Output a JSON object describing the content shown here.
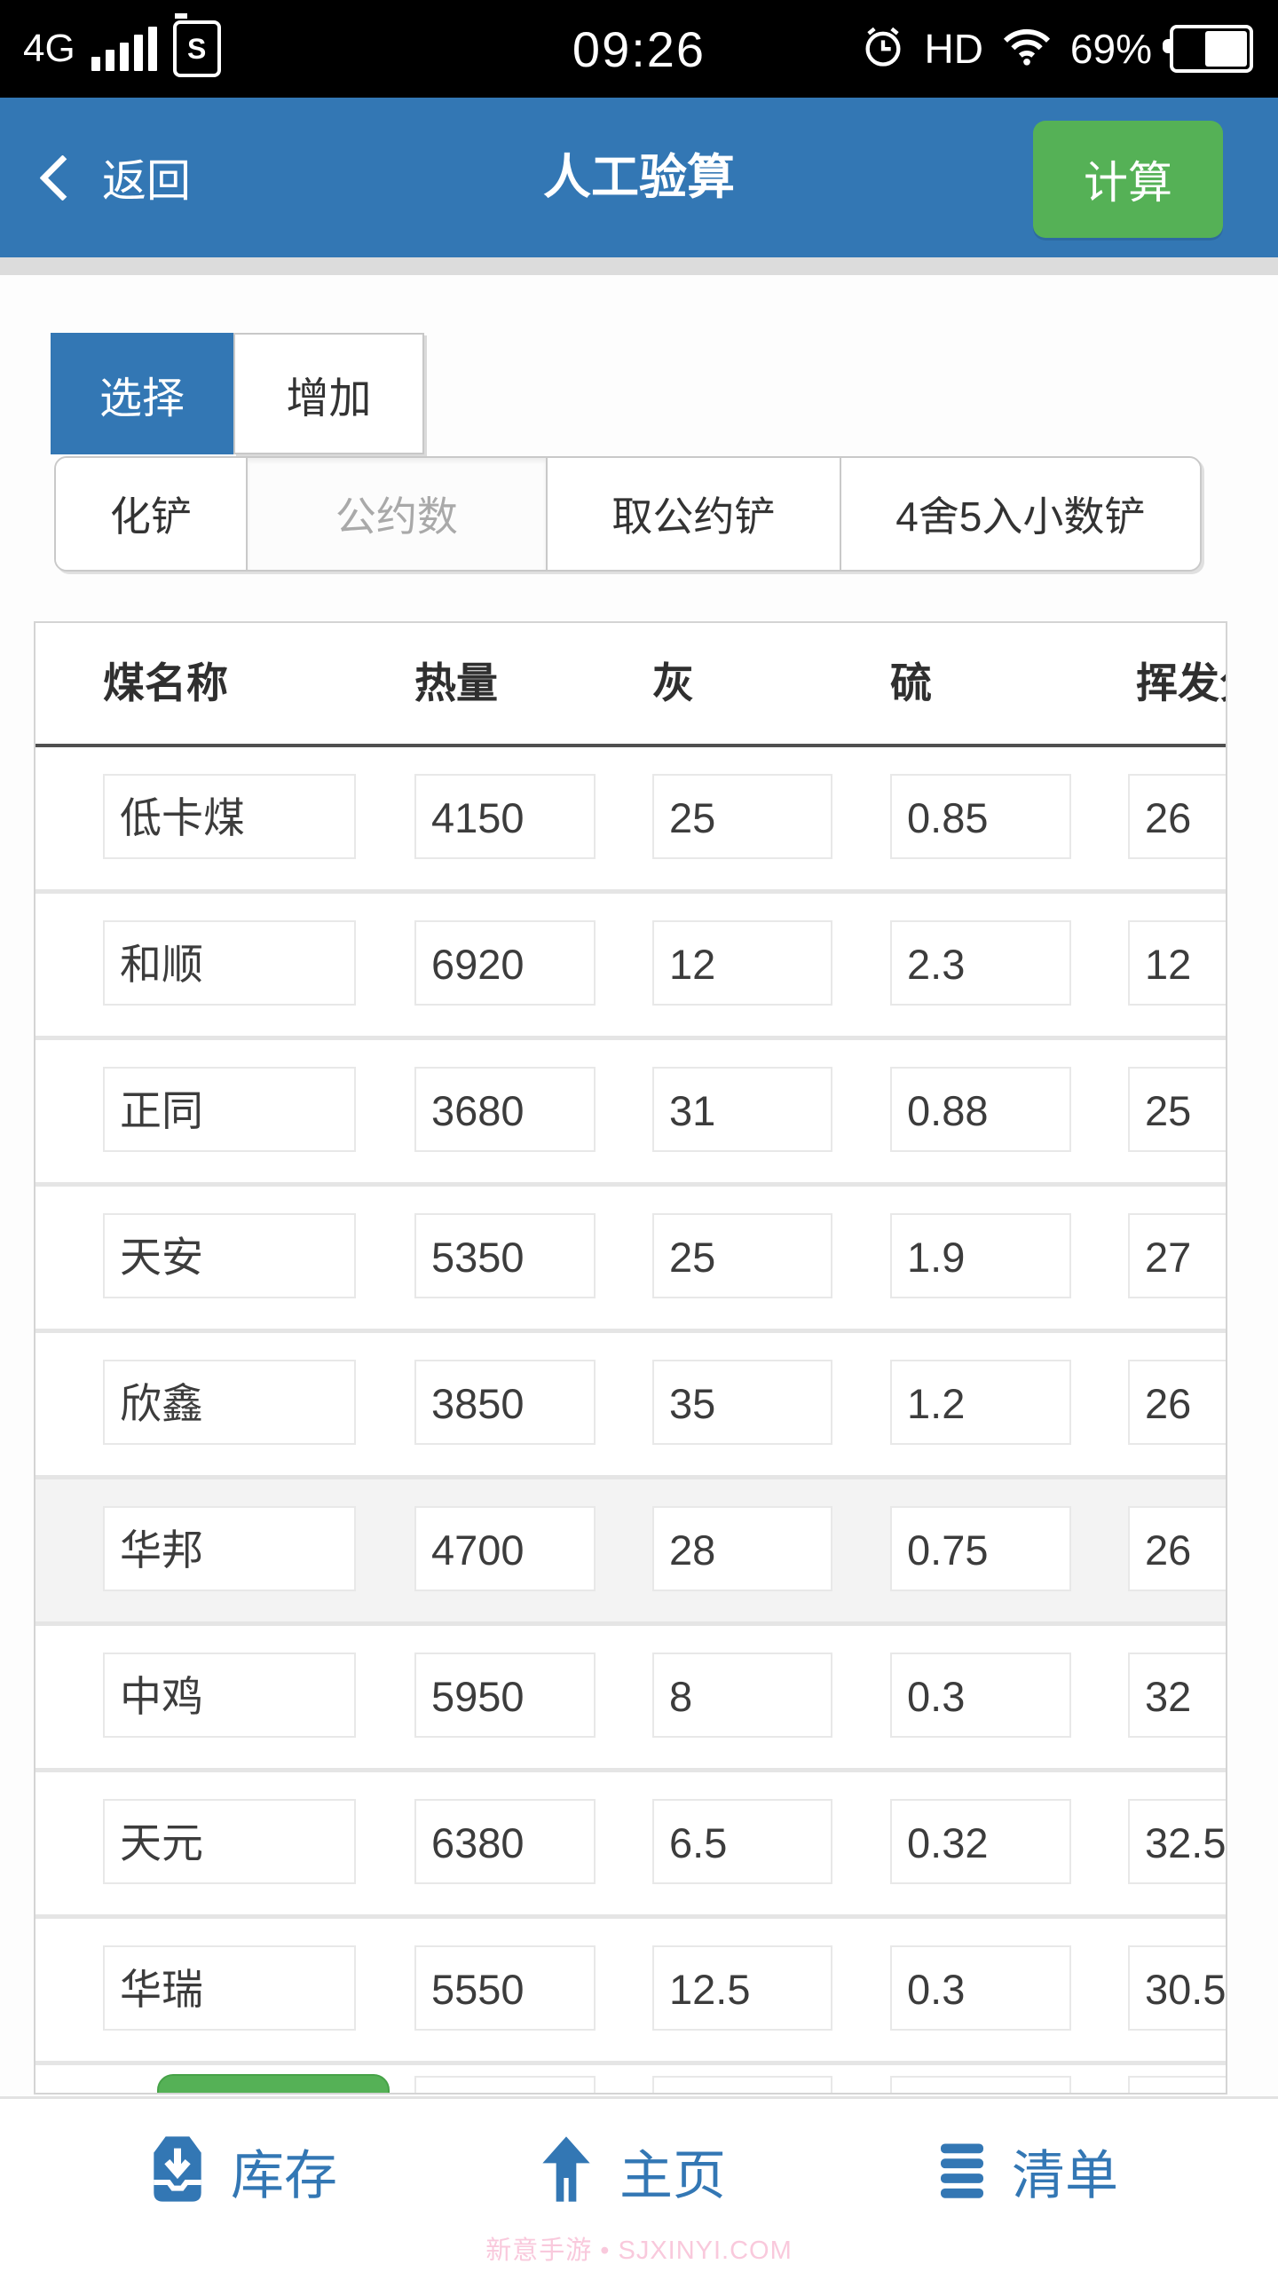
{
  "status_bar": {
    "network": "4G",
    "sim_label": "S",
    "time": "09:26",
    "hd": "HD",
    "battery_percent": "69%"
  },
  "header": {
    "back_label": "返回",
    "title": "人工验算",
    "calc_button": "计算"
  },
  "tabs": {
    "select": "选择",
    "add": "增加"
  },
  "actions": {
    "convert": "化铲",
    "gcd_placeholder": "公约数",
    "take_gcd": "取公约铲",
    "round_decimal": "4舍5入小数铲"
  },
  "table": {
    "headers": [
      "煤名称",
      "热量",
      "灰",
      "硫",
      "挥发分"
    ],
    "rows": [
      [
        "低卡煤",
        "4150",
        "25",
        "0.85",
        "26"
      ],
      [
        "和顺",
        "6920",
        "12",
        "2.3",
        "12"
      ],
      [
        "正同",
        "3680",
        "31",
        "0.88",
        "25"
      ],
      [
        "天安",
        "5350",
        "25",
        "1.9",
        "27"
      ],
      [
        "欣鑫",
        "3850",
        "35",
        "1.2",
        "26"
      ],
      [
        "华邦",
        "4700",
        "28",
        "0.75",
        "26"
      ],
      [
        "中鸡",
        "5950",
        "8",
        "0.3",
        "32"
      ],
      [
        "天元",
        "6380",
        "6.5",
        "0.32",
        "32.5"
      ],
      [
        "华瑞",
        "5550",
        "12.5",
        "0.3",
        "30.5"
      ]
    ],
    "highlighted_row_index": 5
  },
  "bottom_nav": {
    "inventory": "库存",
    "home": "主页",
    "list": "清单"
  },
  "watermark": "新意手游 • SJXINYI.COM",
  "colors": {
    "accent_blue": "#3377b4",
    "accent_green": "#55b156",
    "status_bar_black": "#000000",
    "watermark_pink": "#f9c9dc"
  }
}
